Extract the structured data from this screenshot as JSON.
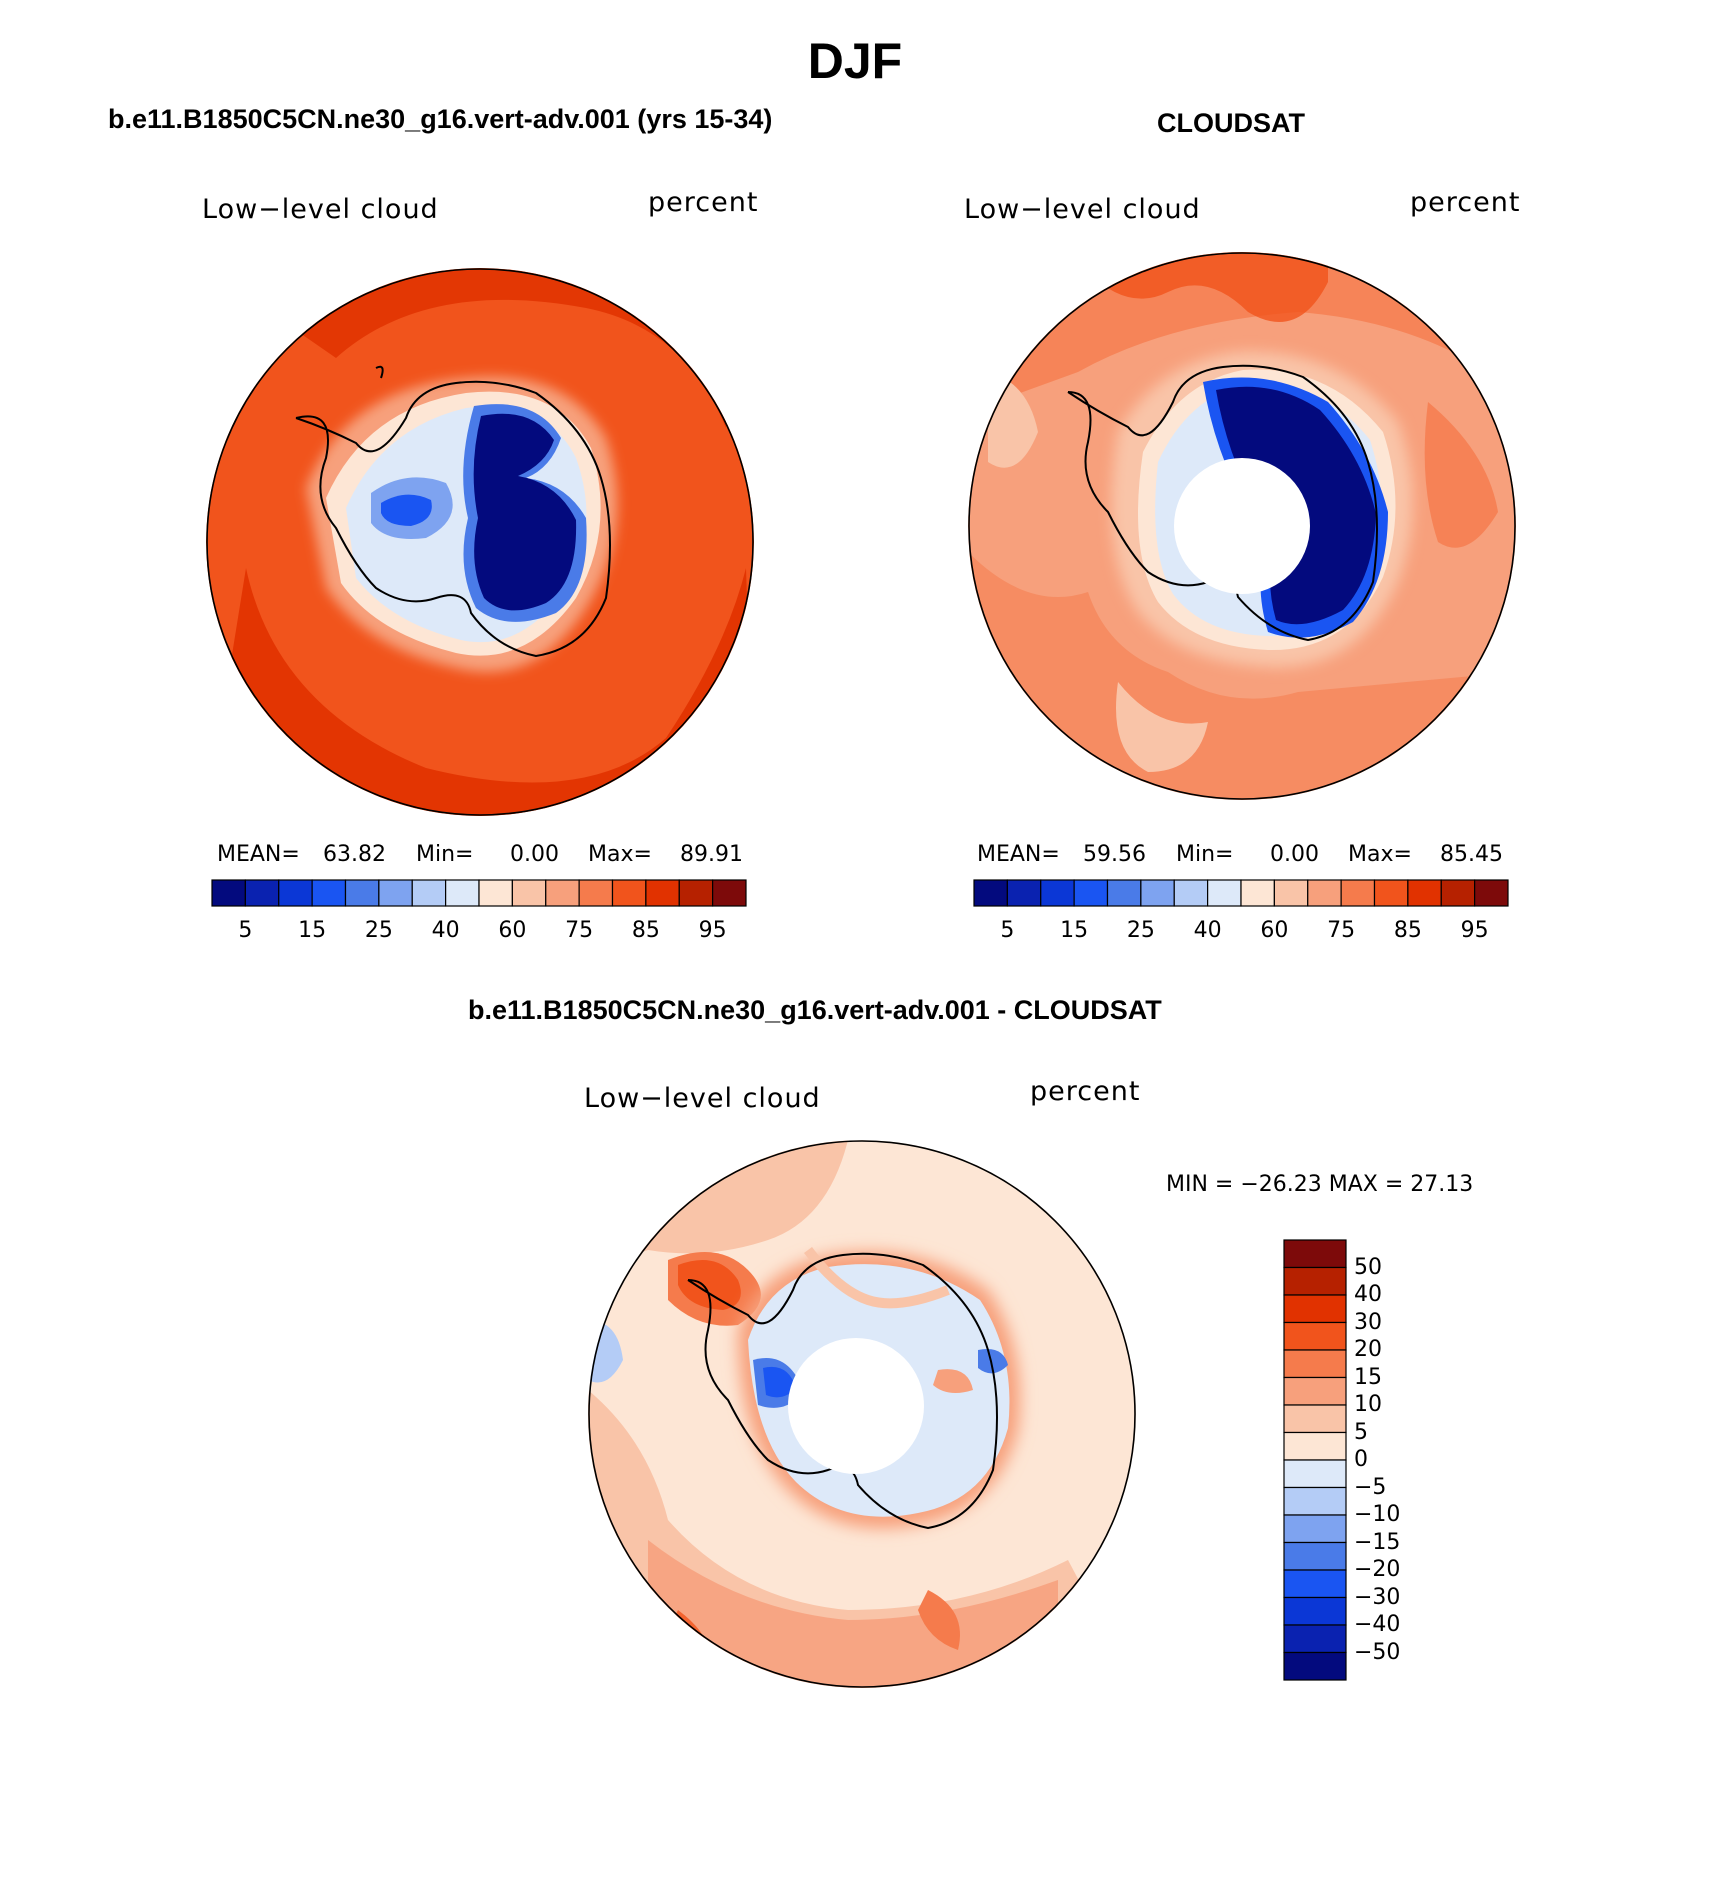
{
  "title": "DJF",
  "panels": [
    {
      "id": "model",
      "heading": "b.e11.B1850C5CN.ne30_g16.vert-adv.001 (yrs 15-34)",
      "variable": "Low−level cloud",
      "units": "percent",
      "stats": {
        "mean_label": "MEAN=",
        "mean": "63.82",
        "min_label": "Min=",
        "min": "0.00",
        "max_label": "Max=",
        "max": "89.91"
      }
    },
    {
      "id": "obs",
      "heading": "CLOUDSAT",
      "variable": "Low−level cloud",
      "units": "percent",
      "stats": {
        "mean_label": "MEAN=",
        "mean": "59.56",
        "min_label": "Min=",
        "min": "0.00",
        "max_label": "Max=",
        "max": "85.45"
      }
    },
    {
      "id": "diff",
      "heading": "b.e11.B1850C5CN.ne30_g16.vert-adv.001 - CLOUDSAT",
      "variable": "Low−level cloud",
      "units": "percent",
      "minmax": "MIN = −26.23 MAX =  27.13"
    }
  ],
  "colorbar_abs": {
    "colors": [
      "#030a7e",
      "#0a22b0",
      "#0b37d6",
      "#1a55f2",
      "#4a7be8",
      "#7ea3f0",
      "#b4ccf6",
      "#dde9f9",
      "#fde6d5",
      "#f9c4a8",
      "#f7a07c",
      "#f57b4c",
      "#f1541c",
      "#e13200",
      "#b62100",
      "#7d0a0a"
    ],
    "tick_labels": [
      "5",
      "15",
      "25",
      "40",
      "60",
      "75",
      "85",
      "95"
    ]
  },
  "colorbar_diff": {
    "colors": [
      "#7d0a0a",
      "#b62100",
      "#e13200",
      "#f1541c",
      "#f57b4c",
      "#f7a07c",
      "#f9c4a8",
      "#fde6d5",
      "#dde9f9",
      "#b4ccf6",
      "#7ea3f0",
      "#4a7be8",
      "#1a55f2",
      "#0b37d6",
      "#0a22b0",
      "#030a7e"
    ],
    "tick_labels": [
      "50",
      "40",
      "30",
      "20",
      "15",
      "10",
      "5",
      "0",
      "−5",
      "−10",
      "−15",
      "−20",
      "−30",
      "−40",
      "−50"
    ]
  },
  "chart_data": [
    {
      "type": "heatmap",
      "title": "b.e11.B1850C5CN.ne30_g16.vert-adv.001 (yrs 15-34)",
      "variable": "Low-level cloud",
      "units": "percent",
      "projection": "south polar stereographic",
      "mean": 63.82,
      "min": 0.0,
      "max": 89.91,
      "levels": [
        5,
        10,
        15,
        20,
        25,
        30,
        40,
        50,
        60,
        70,
        75,
        80,
        85,
        90,
        95
      ]
    },
    {
      "type": "heatmap",
      "title": "CLOUDSAT",
      "variable": "Low-level cloud",
      "units": "percent",
      "projection": "south polar stereographic",
      "mean": 59.56,
      "min": 0.0,
      "max": 85.45,
      "levels": [
        5,
        10,
        15,
        20,
        25,
        30,
        40,
        50,
        60,
        70,
        75,
        80,
        85,
        90,
        95
      ]
    },
    {
      "type": "heatmap",
      "title": "b.e11.B1850C5CN.ne30_g16.vert-adv.001 - CLOUDSAT",
      "variable": "Low-level cloud",
      "units": "percent",
      "projection": "south polar stereographic",
      "min": -26.23,
      "max": 27.13,
      "levels": [
        -50,
        -40,
        -30,
        -20,
        -15,
        -10,
        -5,
        0,
        5,
        10,
        15,
        20,
        30,
        40,
        50
      ]
    }
  ]
}
